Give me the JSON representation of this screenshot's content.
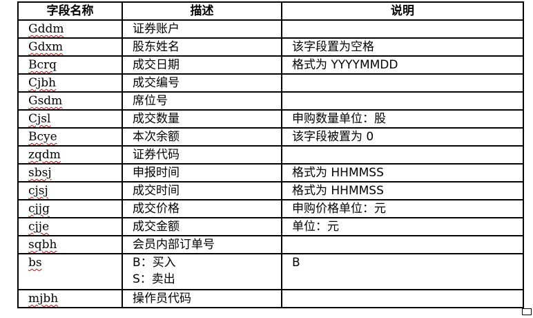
{
  "headers": [
    "字段名称",
    "描述",
    "说明"
  ],
  "rows": [
    {
      "field": "Gddm",
      "desc": "证券账户",
      "note": ""
    },
    {
      "field": "Gdxm",
      "desc": "股东姓名",
      "note": "该字段置为空格"
    },
    {
      "field": "Bcrq",
      "desc": "成交日期",
      "note": "格式为 YYYYMMDD"
    },
    {
      "field": "Cjbh",
      "desc": "成交编号",
      "note": ""
    },
    {
      "field": "Gsdm",
      "desc": "席位号",
      "note": ""
    },
    {
      "field": "Cjsl",
      "desc": "成交数量",
      "note": "申购数量单位：股"
    },
    {
      "field": "Bcye",
      "desc": "本次余额",
      "note": "该字段被置为 0"
    },
    {
      "field": "zqdm",
      "desc": "证券代码",
      "note": ""
    },
    {
      "field": "sbsj",
      "desc": "申报时间",
      "note": "格式为 HHMMSS"
    },
    {
      "field": "cjsj",
      "desc": "成交时间",
      "note": "格式为 HHMMSS"
    },
    {
      "field": "cjjg",
      "desc": "成交价格",
      "note": "申购价格单位：元"
    },
    {
      "field": "cjje",
      "desc": "成交金额",
      "note": "单位：元"
    },
    {
      "field": "sqbh",
      "desc": "会员内部订单号",
      "note": ""
    },
    {
      "field": "bs",
      "desc": "B：买入",
      "desc2": "S：卖出",
      "note": "B"
    },
    {
      "field": "mjbh",
      "desc": "操作员代码",
      "note": ""
    }
  ]
}
